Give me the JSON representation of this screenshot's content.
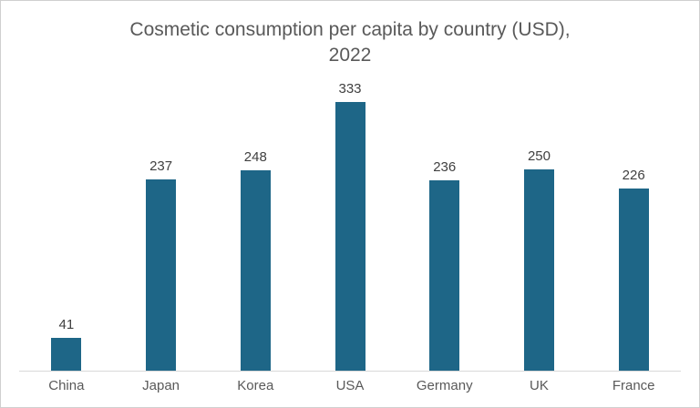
{
  "title": {
    "full": "Cosmetic consumption per capita by country (USD), 2022",
    "line1": "Cosmetic consumption per capita by country (USD),",
    "line2": "2022",
    "color": "#595959"
  },
  "chart_data": {
    "type": "bar",
    "title": "Cosmetic consumption per capita by country (USD), 2022",
    "categories": [
      "China",
      "Japan",
      "Korea",
      "USA",
      "Germany",
      "UK",
      "France"
    ],
    "values": [
      41,
      237,
      248,
      333,
      236,
      250,
      226
    ],
    "xlabel": "",
    "ylabel": "",
    "ylim": [
      0,
      350
    ],
    "grid": false,
    "legend": false,
    "data_labels": true,
    "bar_color": "#1e6687",
    "value_label_color": "#404040",
    "category_label_color": "#595959",
    "axis_line_color": "#d9d9d9",
    "background_color": "#ffffff",
    "border_color": "#cfcfcf"
  }
}
